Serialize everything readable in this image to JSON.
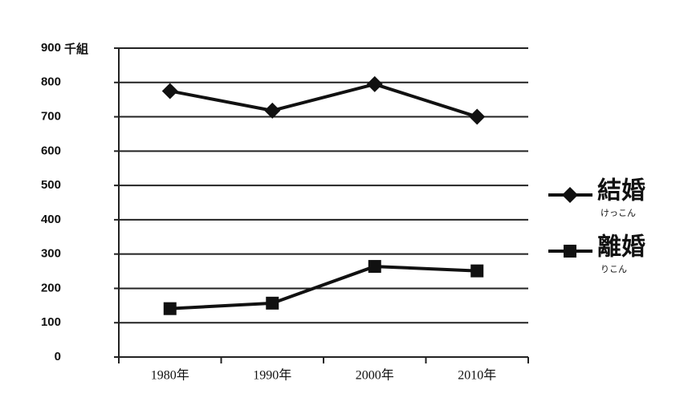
{
  "chart_data": {
    "type": "line",
    "y_unit": "千組",
    "categories": [
      "1980年",
      "1990年",
      "2000年",
      "2010年"
    ],
    "series": [
      {
        "name": "結婚",
        "reading": "けっこん",
        "marker": "diamond",
        "color": "#111111",
        "values": [
          775,
          718,
          795,
          700
        ]
      },
      {
        "name": "離婚",
        "reading": "りこん",
        "marker": "square",
        "color": "#111111",
        "values": [
          141,
          157,
          264,
          251
        ]
      }
    ],
    "ylim": [
      0,
      900
    ],
    "yticks": [
      0,
      100,
      200,
      300,
      400,
      500,
      600,
      700,
      800,
      900
    ],
    "grid": true,
    "legend": "right"
  }
}
